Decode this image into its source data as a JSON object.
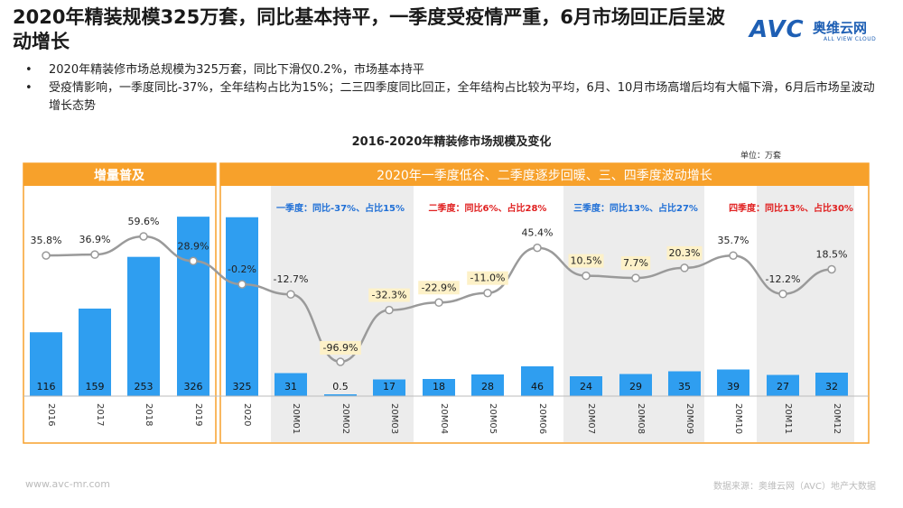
{
  "title": "2020年精装规模325万套，同比基本持平，一季度受疫情严重，6月市场回正后呈波动增长",
  "logo": {
    "brand": "AVC",
    "name_cn": "奥维云网",
    "name_en": "ALL VIEW CLOUD"
  },
  "bullets": [
    "2020年精装修市场总规模为325万套，同比下滑仅0.2%，市场基本持平",
    "受疫情影响，一季度同比-37%，全年结构占比为15%；二三四季度同比回正，全年结构占比较为平均，6月、10月市场高增后均有大幅下滑，6月后市场呈波动增长态势"
  ],
  "footer": {
    "website": "www.avc-mr.com",
    "source": "数据来源：奥维云网（AVC）地产大数据"
  },
  "colors": {
    "accent": "#f7a12b",
    "bar": "#2f9ef0",
    "line": "#9a9a9a",
    "q1": "#1f6fd6",
    "q2": "#e02020",
    "q3": "#1f6fd6",
    "q4": "#e02020"
  },
  "chart_data": {
    "type": "bar+line",
    "title": "2016-2020年精装修市场规模及变化",
    "unit": "单位：万套",
    "panel_left_title": "增量普及",
    "panel_right_title": "2020年一季度低谷、二季度逐步回暖、三、四季度波动增长",
    "quarter_notes": [
      {
        "label": "一季度：同比-37%、占比15%",
        "color": "#1f6fd6"
      },
      {
        "label": "二季度：同比6%、占比28%",
        "color": "#e02020"
      },
      {
        "label": "三季度：同比13%、占比27%",
        "color": "#1f6fd6"
      },
      {
        "label": "四季度：同比13%、占比30%",
        "color": "#e02020"
      }
    ],
    "categories": [
      "2016",
      "2017",
      "2018",
      "2019",
      "2020",
      "20M01",
      "20M02",
      "20M03",
      "20M04",
      "20M05",
      "20M06",
      "20M07",
      "20M08",
      "20M09",
      "20M10",
      "20M11",
      "20M12"
    ],
    "bar_labels": [
      "116",
      "159",
      "253",
      "326",
      "325",
      "31",
      "0.5",
      "17",
      "18",
      "28",
      "46",
      "24",
      "29",
      "35",
      "39",
      "27",
      "32"
    ],
    "bar_values": [
      116,
      159,
      253,
      326,
      325,
      31,
      0.5,
      17,
      18,
      28,
      46,
      24,
      29,
      35,
      39,
      27,
      32
    ],
    "growth_labels": [
      "35.8%",
      "36.9%",
      "59.6%",
      "28.9%",
      "-0.2%",
      "-12.7%",
      "-96.9%",
      "-32.3%",
      "-22.9%",
      "-11.0%",
      "45.4%",
      "10.5%",
      "7.7%",
      "20.3%",
      "35.7%",
      "-12.2%",
      "18.5%"
    ],
    "growth_values": [
      35.8,
      36.9,
      59.6,
      28.9,
      -0.2,
      -12.7,
      -96.9,
      -32.3,
      -22.9,
      -11.0,
      45.4,
      10.5,
      7.7,
      20.3,
      35.7,
      -12.2,
      18.5
    ],
    "highlighted_growth_labels": [
      6,
      7,
      8,
      9,
      11,
      12,
      13
    ]
  }
}
